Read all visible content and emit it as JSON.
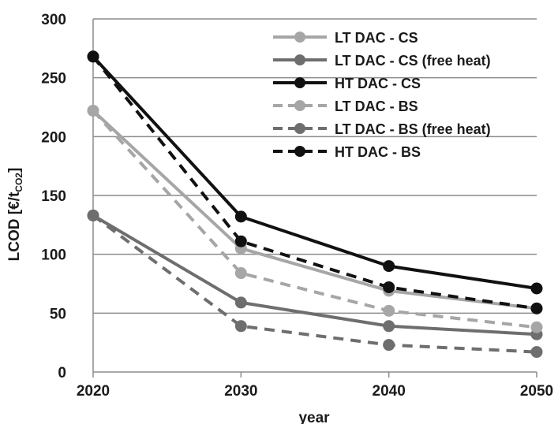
{
  "chart_data": {
    "type": "line",
    "xlabel": "year",
    "ylabel_main": "LCOD [€/t",
    "ylabel_sub": "CO2",
    "ylabel_close": "]",
    "xlim": [
      2020,
      2050
    ],
    "ylim": [
      0,
      300
    ],
    "x_ticks": [
      2020,
      2030,
      2040,
      2050
    ],
    "y_ticks": [
      0,
      50,
      100,
      150,
      200,
      250,
      300
    ],
    "grid": true,
    "legend_position": "top-right",
    "x": [
      2020,
      2030,
      2040,
      2050
    ],
    "series": [
      {
        "name": "LT DAC - CS",
        "values": [
          222,
          105,
          69,
          54
        ],
        "color": "#a6a6a6",
        "dashed": false
      },
      {
        "name": "LT DAC - CS (free heat)",
        "values": [
          133,
          59,
          39,
          32
        ],
        "color": "#6e6e6e",
        "dashed": false
      },
      {
        "name": "HT DAC - CS",
        "values": [
          268,
          132,
          90,
          71
        ],
        "color": "#111111",
        "dashed": false
      },
      {
        "name": "LT DAC - BS",
        "values": [
          222,
          84,
          52,
          38
        ],
        "color": "#a6a6a6",
        "dashed": true
      },
      {
        "name": "LT DAC - BS (free heat)",
        "values": [
          133,
          39,
          23,
          17
        ],
        "color": "#6e6e6e",
        "dashed": true
      },
      {
        "name": "HT DAC - BS",
        "values": [
          268,
          111,
          72,
          54
        ],
        "color": "#111111",
        "dashed": true
      }
    ]
  }
}
